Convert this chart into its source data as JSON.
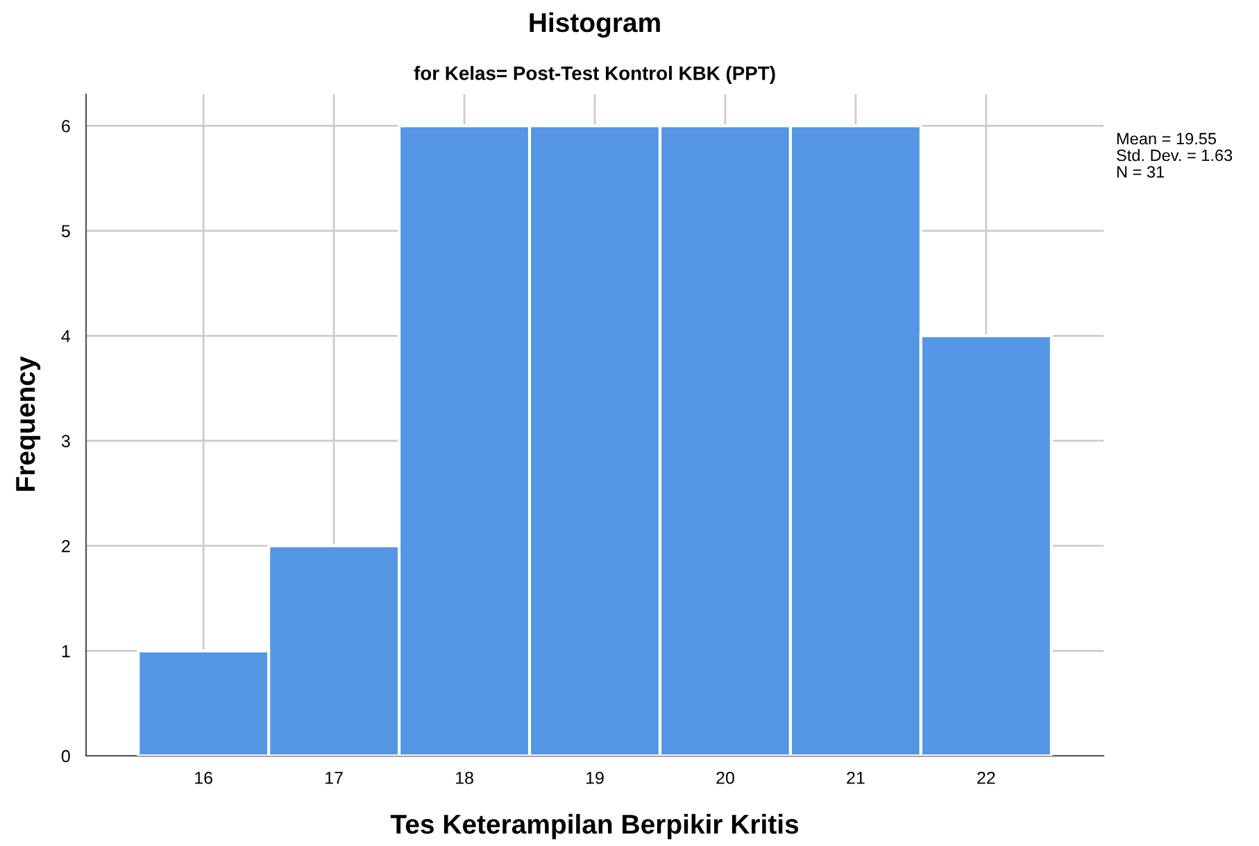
{
  "chart_data": {
    "type": "histogram",
    "title": "Histogram",
    "subtitle": "for Kelas= Post-Test Kontrol KBK (PPT)",
    "xlabel": "Tes Keterampilan Berpikir Kritis",
    "ylabel": "Frequency",
    "bins": [
      15.5,
      16.5,
      17.5,
      18.5,
      19.5,
      20.5,
      21.5,
      22.5
    ],
    "values": [
      1,
      2,
      6,
      6,
      6,
      6,
      4
    ],
    "color": "#5496e3",
    "xlim": [
      15.1,
      22.9
    ],
    "xticks": [
      16,
      17,
      18,
      19,
      20,
      21,
      22
    ],
    "ylim": [
      0,
      6.3
    ],
    "yticks": [
      0,
      1,
      2,
      3,
      4,
      5,
      6
    ],
    "grid": true,
    "annotations": [
      "Mean = 19.55",
      "Std. Dev. = 1.63",
      "N = 31"
    ]
  }
}
